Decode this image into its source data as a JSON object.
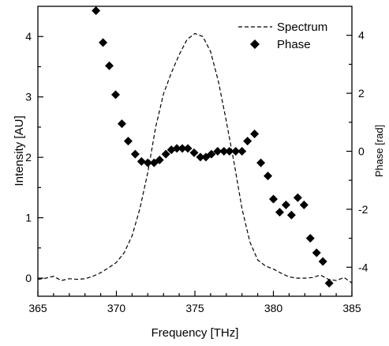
{
  "chart_data": {
    "type": "line",
    "xlabel": "Frequency [THz]",
    "ylabel_left": "Intensity [AU]",
    "ylabel_right": "Phase [rad]",
    "xlim": [
      365,
      385
    ],
    "ylim_left": [
      -0.3,
      4.5
    ],
    "ylim_right": [
      -5,
      5
    ],
    "x_ticks": [
      365,
      370,
      375,
      380,
      385
    ],
    "y_ticks_left": [
      0,
      1,
      2,
      3,
      4
    ],
    "y_ticks_right": [
      -4,
      -2,
      0,
      2,
      4
    ],
    "grid": false,
    "legend_position": "top-right",
    "series": [
      {
        "name": "Spectrum",
        "style": "dashed",
        "axis": "left",
        "color": "#000000",
        "x": [
          365.0,
          365.5,
          366.0,
          366.5,
          367.0,
          367.5,
          368.0,
          368.5,
          369.0,
          369.5,
          370.0,
          370.5,
          371.0,
          371.5,
          372.0,
          372.5,
          373.0,
          373.5,
          374.0,
          374.5,
          375.0,
          375.5,
          376.0,
          376.5,
          377.0,
          377.5,
          378.0,
          378.5,
          379.0,
          379.5,
          380.0,
          380.5,
          381.0,
          381.5,
          382.0,
          382.5,
          383.0,
          383.5,
          384.0,
          384.5,
          385.0
        ],
        "y": [
          -0.02,
          0.0,
          0.03,
          -0.04,
          -0.01,
          -0.02,
          -0.01,
          0.03,
          0.09,
          0.17,
          0.26,
          0.42,
          0.7,
          1.15,
          1.75,
          2.5,
          3.05,
          3.4,
          3.7,
          3.95,
          4.05,
          4.0,
          3.75,
          3.25,
          2.6,
          1.9,
          1.15,
          0.6,
          0.3,
          0.2,
          0.15,
          0.08,
          0.02,
          0.0,
          0.0,
          0.01,
          0.05,
          -0.02,
          -0.04,
          0.01,
          -0.08
        ]
      },
      {
        "name": "Phase",
        "style": "diamond-markers",
        "axis": "right",
        "color": "#000000",
        "x": [
          368.7,
          369.15,
          369.55,
          369.95,
          370.35,
          370.75,
          371.2,
          371.6,
          372.0,
          372.4,
          372.75,
          373.15,
          373.5,
          373.85,
          374.2,
          374.55,
          374.95,
          375.35,
          375.7,
          376.05,
          376.45,
          376.85,
          377.2,
          377.6,
          378.0,
          378.35,
          378.8,
          379.2,
          379.65,
          380.0,
          380.4,
          380.8,
          381.15,
          381.55,
          381.95,
          382.35,
          382.75,
          383.15,
          383.55
        ],
        "y": [
          4.85,
          3.75,
          2.95,
          1.95,
          0.95,
          0.35,
          -0.1,
          -0.35,
          -0.4,
          -0.4,
          -0.3,
          -0.1,
          0.05,
          0.1,
          0.1,
          0.1,
          -0.05,
          -0.2,
          -0.2,
          -0.1,
          0.0,
          0.0,
          0.0,
          0.0,
          0.0,
          0.35,
          0.6,
          -0.4,
          -0.85,
          -1.65,
          -2.1,
          -1.85,
          -2.2,
          -1.6,
          -1.85,
          -3.0,
          -3.5,
          -3.8,
          -4.55
        ]
      }
    ]
  }
}
